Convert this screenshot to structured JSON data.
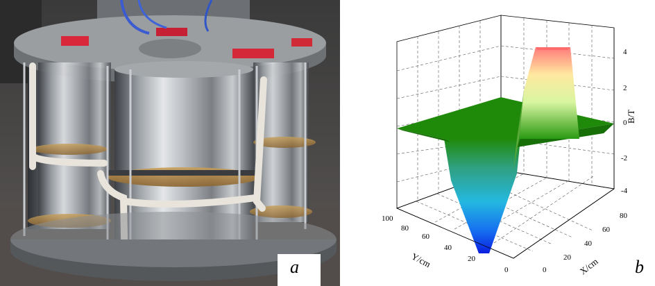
{
  "panels": {
    "a": {
      "label": "a"
    },
    "b": {
      "label": "b"
    }
  },
  "chart_data": {
    "type": "surface3d",
    "zlabel": "B/T",
    "xlabel": "X/cm",
    "ylabel": "Y/cm",
    "z_ticks": [
      "4",
      "2",
      "0",
      "-2",
      "-4"
    ],
    "x_ticks": [
      "0",
      "20",
      "40",
      "60",
      "80"
    ],
    "y_ticks": [
      "100",
      "80",
      "60",
      "40",
      "20",
      "0"
    ],
    "zlim": [
      -5,
      5
    ],
    "grid": true,
    "features": [
      {
        "name": "positive-peak",
        "value": 4.3,
        "color": "#ff8080"
      },
      {
        "name": "plateau",
        "value": 0,
        "color": "#1f8a0a"
      },
      {
        "name": "negative-peak",
        "value": -5,
        "color": "#0a1ee0"
      }
    ]
  }
}
